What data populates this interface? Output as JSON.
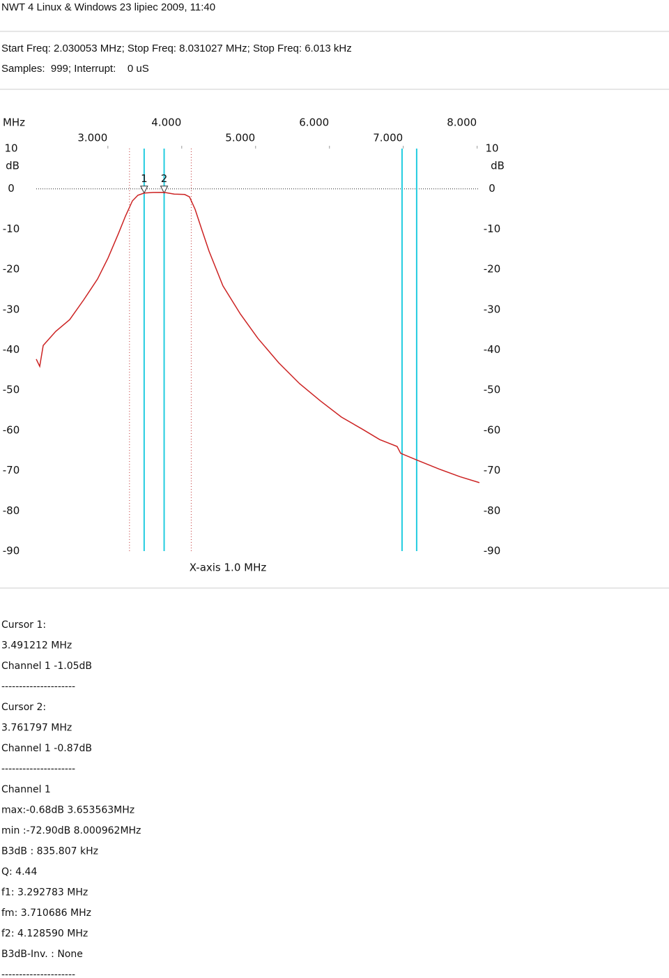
{
  "header": {
    "title": "NWT 4 Linux & Windows  23 lipiec 2009, 11:40",
    "freq_line": "Start Freq: 2.030053 MHz; Stop Freq: 8.031027 MHz; Stop Freq: 6.013 kHz",
    "samples_line": "Samples:  999; Interrupt:    0 uS"
  },
  "chart_data": {
    "type": "line",
    "x_unit_label": "MHz",
    "y_unit_label": "dB",
    "xlabel": "X-axis 1.0 MHz",
    "xlim": [
      2.030053,
      8.031027
    ],
    "ylim": [
      -90,
      10
    ],
    "xticks": [
      {
        "value": 3,
        "label": "3.000"
      },
      {
        "value": 4,
        "label": "4.000"
      },
      {
        "value": 5,
        "label": "5.000"
      },
      {
        "value": 6,
        "label": "6.000"
      },
      {
        "value": 7,
        "label": "7.000"
      },
      {
        "value": 8,
        "label": "8.000"
      }
    ],
    "yticks": [
      10,
      0,
      -10,
      -20,
      -30,
      -40,
      -50,
      -60,
      -70,
      -80,
      -90
    ],
    "ref_level": 0,
    "cursor_color": "#22cce0",
    "cursors": [
      3.491212,
      3.761797,
      6.983,
      7.181
    ],
    "cursor_labels": [
      "1",
      "2"
    ],
    "bandwidth_color": "#c03030",
    "bandwidth_edges": [
      3.292783,
      4.12859
    ],
    "series": [
      {
        "name": "Channel 1",
        "color": "#cc2222",
        "x": [
          2.03,
          2.077,
          2.124,
          2.294,
          2.483,
          2.672,
          2.86,
          3.002,
          3.143,
          3.238,
          3.332,
          3.407,
          3.491,
          3.615,
          3.762,
          3.898,
          4.04,
          4.105,
          4.181,
          4.275,
          4.37,
          4.558,
          4.794,
          5.03,
          5.313,
          5.596,
          5.879,
          6.162,
          6.445,
          6.681,
          6.916,
          6.964,
          7.2,
          7.483,
          7.766,
          8.03
        ],
        "values": [
          -42.3,
          -44.1,
          -38.9,
          -35.4,
          -32.5,
          -27.6,
          -22.4,
          -17.2,
          -11.1,
          -6.8,
          -3.0,
          -1.6,
          -1.05,
          -0.9,
          -0.87,
          -1.3,
          -1.4,
          -2.0,
          -5.1,
          -10.3,
          -15.5,
          -24.1,
          -31.1,
          -37.1,
          -43.2,
          -48.4,
          -52.7,
          -56.7,
          -59.7,
          -62.3,
          -64.0,
          -65.7,
          -67.5,
          -69.6,
          -71.5,
          -73.0
        ]
      }
    ]
  },
  "report": [
    "Cursor 1:",
    "3.491212 MHz",
    "Channel 1 -1.05dB",
    "---------------------",
    "Cursor 2:",
    "3.761797 MHz",
    "Channel 1 -0.87dB",
    "---------------------",
    "Channel 1",
    "max:-0.68dB 3.653563MHz",
    "min :-72.90dB 8.000962MHz",
    "B3dB : 835.807 kHz",
    "Q: 4.44",
    "f1: 3.292783 MHz",
    "fm: 3.710686 MHz",
    "f2: 4.128590 MHz",
    "B3dB-Inv. : None",
    "---------------------"
  ]
}
